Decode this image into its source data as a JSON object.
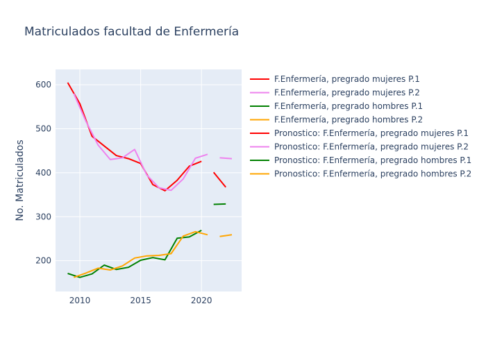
{
  "chart_data": {
    "type": "line",
    "title": "Matriculados facultad de Enfermería",
    "xlabel": "",
    "ylabel": "No. Matriculados",
    "xlim": [
      2008,
      2023.3
    ],
    "ylim": [
      130,
      635
    ],
    "xticks": [
      2010,
      2015,
      2020
    ],
    "yticks": [
      200,
      300,
      400,
      500,
      600
    ],
    "grid": true,
    "legend_position": "right",
    "series": [
      {
        "name": "F.Enfermería, pregrado mujeres P.1",
        "color": "#ff0000",
        "x": [
          2009,
          2010,
          2011,
          2012,
          2013,
          2014,
          2015,
          2016,
          2017,
          2018,
          2019,
          2020
        ],
        "y": [
          605,
          557,
          483,
          461,
          439,
          432,
          421,
          373,
          359,
          383,
          415,
          426
        ]
      },
      {
        "name": "F.Enfermería, pregrado mujeres P.2",
        "color": "#ee82ee",
        "x": [
          2009.5,
          2010.5,
          2011.5,
          2012.5,
          2013.5,
          2014.5,
          2015.5,
          2016.5,
          2017.5,
          2018.5,
          2019.5,
          2020.5
        ],
        "y": [
          580,
          517,
          463,
          430,
          434,
          453,
          395,
          366,
          360,
          386,
          433,
          442
        ]
      },
      {
        "name": "F.Enfermería, pregrado hombres P.1",
        "color": "#008000",
        "x": [
          2009,
          2010,
          2011,
          2012,
          2013,
          2014,
          2015,
          2016,
          2017,
          2018,
          2019,
          2020
        ],
        "y": [
          171,
          162,
          170,
          190,
          180,
          185,
          201,
          207,
          202,
          251,
          254,
          269
        ]
      },
      {
        "name": "F.Enfermería, pregrado hombres P.2",
        "color": "#ffa500",
        "x": [
          2009.5,
          2010.5,
          2011.5,
          2012.5,
          2013.5,
          2014.5,
          2015.5,
          2016.5,
          2017.5,
          2018.5,
          2019.5,
          2020.5
        ],
        "y": [
          162,
          172,
          183,
          179,
          188,
          206,
          211,
          212,
          216,
          256,
          266,
          259
        ]
      },
      {
        "name": "Pronostico: F.Enfermería, pregrado mujeres P.1",
        "color": "#ff0000",
        "x": [
          2021,
          2022
        ],
        "y": [
          401,
          367
        ]
      },
      {
        "name": "Pronostico: F.Enfermería, pregrado mujeres P.2",
        "color": "#ee82ee",
        "x": [
          2021.5,
          2022.5
        ],
        "y": [
          434,
          432
        ]
      },
      {
        "name": "Pronostico: F.Enfermería, pregrado hombres P.1",
        "color": "#008000",
        "x": [
          2021,
          2022
        ],
        "y": [
          328,
          329
        ]
      },
      {
        "name": "Pronostico: F.Enfermería, pregrado hombres P.2",
        "color": "#ffa500",
        "x": [
          2021.5,
          2022.5
        ],
        "y": [
          255,
          259
        ]
      }
    ]
  }
}
